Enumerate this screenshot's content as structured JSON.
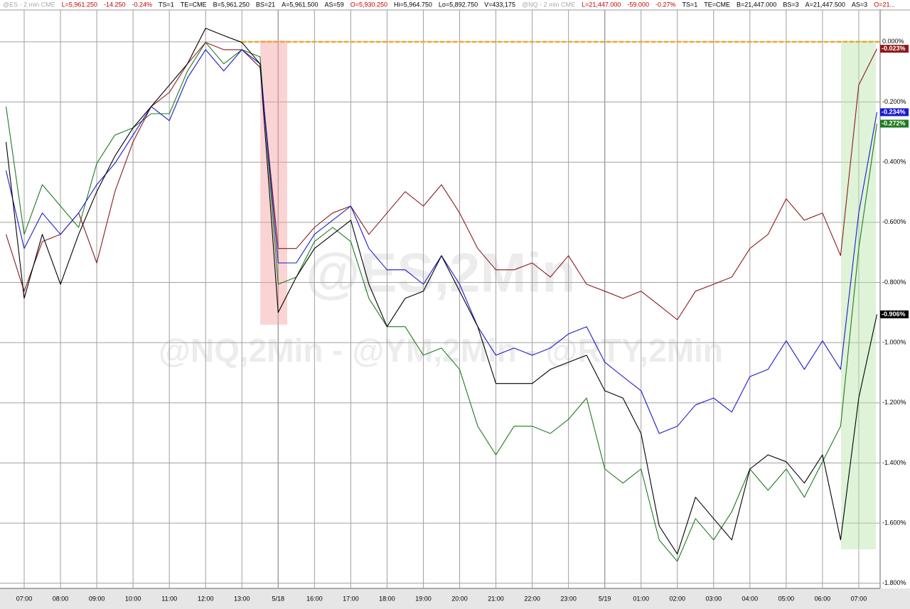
{
  "chart_data": {
    "type": "line",
    "header": [
      {
        "text": "@ES - 2 min  CME",
        "color": "#aaaaaa"
      },
      {
        "text": "L=5,961.250",
        "color": "#c00000"
      },
      {
        "text": "-14.250",
        "color": "#c00000"
      },
      {
        "text": "-0.24%",
        "color": "#c00000"
      },
      {
        "text": "TS=1",
        "color": "#000000"
      },
      {
        "text": "TE=CME",
        "color": "#000000"
      },
      {
        "text": "B=5,961.250",
        "color": "#000000"
      },
      {
        "text": "BS=21",
        "color": "#000000"
      },
      {
        "text": "A=5,961.500",
        "color": "#000000"
      },
      {
        "text": "AS=59",
        "color": "#000000"
      },
      {
        "text": "O=5,930.250",
        "color": "#c00000"
      },
      {
        "text": "Hi=5,964.750",
        "color": "#000000"
      },
      {
        "text": "Lo=5,892.750",
        "color": "#000000"
      },
      {
        "text": "V=433,175",
        "color": "#000000"
      },
      {
        "text": "@NQ - 2 min  CME",
        "color": "#aaaaaa"
      },
      {
        "text": "L=21,447.000",
        "color": "#c00000"
      },
      {
        "text": "-59.000",
        "color": "#c00000"
      },
      {
        "text": "-0.27%",
        "color": "#c00000"
      },
      {
        "text": "TS=1",
        "color": "#000000"
      },
      {
        "text": "TE=CME",
        "color": "#000000"
      },
      {
        "text": "B=21,447.000",
        "color": "#000000"
      },
      {
        "text": "BS=3",
        "color": "#000000"
      },
      {
        "text": "A=21,447.500",
        "color": "#000000"
      },
      {
        "text": "AS=3",
        "color": "#000000"
      },
      {
        "text": "O=21...",
        "color": "#c00000"
      }
    ],
    "watermarks": [
      "@ES,2Min",
      "@NQ,2Min - @YM,2Min - @RTY,2Min"
    ],
    "categories": [
      null,
      "07:00",
      null,
      "08:00",
      null,
      "09:00",
      null,
      "10:00",
      null,
      "11:00",
      null,
      "12:00",
      null,
      "13:00",
      null,
      "5/18",
      null,
      "16:00",
      null,
      "17:00",
      null,
      "18:00",
      null,
      "19:00",
      null,
      "20:00",
      null,
      "21:00",
      null,
      "22:00",
      null,
      "23:00",
      null,
      "5/19",
      null,
      "01:00",
      null,
      "02:00",
      null,
      "03:00",
      null,
      "04:00",
      null,
      "05:00",
      null,
      "06:00",
      null,
      "07:00",
      null
    ],
    "series": [
      {
        "name": "@ES,2Min",
        "color": "#8b1a1a",
        "last_label": "-0.023%",
        "values": [
          -0.64,
          -0.829,
          -0.664,
          -0.64,
          -0.569,
          -0.735,
          -0.498,
          -0.333,
          -0.215,
          -0.168,
          -0.073,
          -0.002,
          -0.026,
          -0.026,
          -0.085,
          -0.687,
          -0.687,
          -0.617,
          -0.569,
          -0.546,
          -0.64,
          -0.569,
          -0.498,
          -0.546,
          -0.475,
          -0.569,
          -0.687,
          -0.758,
          -0.758,
          -0.735,
          -0.782,
          -0.711,
          -0.806,
          -0.829,
          -0.853,
          -0.829,
          -0.876,
          -0.924,
          -0.829,
          -0.806,
          -0.782,
          -0.687,
          -0.64,
          -0.522,
          -0.593,
          -0.569,
          -0.711,
          -0.144,
          -0.023
        ]
      },
      {
        "name": "@NQ,2Min",
        "color": "#1a1acd",
        "last_label": "-0.234%",
        "values": [
          -0.428,
          -0.687,
          -0.569,
          -0.64,
          -0.569,
          -0.475,
          -0.404,
          -0.31,
          -0.215,
          -0.262,
          -0.12,
          -0.026,
          -0.097,
          -0.026,
          -0.073,
          -0.735,
          -0.735,
          -0.64,
          -0.593,
          -0.546,
          -0.687,
          -0.758,
          -0.758,
          -0.806,
          -0.711,
          -0.806,
          -0.947,
          -1.042,
          -1.018,
          -1.042,
          -1.018,
          -0.971,
          -0.947,
          -1.065,
          -1.113,
          -1.16,
          -1.302,
          -1.278,
          -1.207,
          -1.184,
          -1.231,
          -1.113,
          -1.089,
          -0.994,
          -1.089,
          -0.994,
          -1.089,
          -0.569,
          -0.234
        ]
      },
      {
        "name": "@RTY,2Min",
        "color": "#1f7a1f",
        "last_label": "-0.272%",
        "values": [
          -0.215,
          -0.64,
          -0.475,
          -0.546,
          -0.617,
          -0.404,
          -0.31,
          -0.286,
          -0.239,
          -0.239,
          -0.097,
          -0.002,
          -0.073,
          -0.026,
          -0.05,
          -0.806,
          -0.782,
          -0.664,
          -0.617,
          -0.664,
          -0.853,
          -0.947,
          -0.947,
          -1.042,
          -1.018,
          -1.089,
          -1.278,
          -1.373,
          -1.278,
          -1.278,
          -1.302,
          -1.255,
          -1.184,
          -1.42,
          -1.467,
          -1.42,
          -1.656,
          -1.727,
          -1.585,
          -1.656,
          -1.562,
          -1.42,
          -1.491,
          -1.42,
          -1.514,
          -1.396,
          -1.278,
          -0.687,
          -0.272
        ]
      },
      {
        "name": "@YM,2Min",
        "color": "#000000",
        "last_label": "-0.906%",
        "values": [
          -0.333,
          -0.853,
          -0.64,
          -0.806,
          -0.64,
          -0.498,
          -0.38,
          -0.286,
          -0.215,
          -0.144,
          -0.073,
          0.045,
          0.021,
          -0.002,
          -0.073,
          -0.9,
          -0.782,
          -0.687,
          -0.64,
          -0.593,
          -0.806,
          -0.947,
          -0.853,
          -0.829,
          -0.711,
          -0.829,
          -0.947,
          -1.136,
          -1.136,
          -1.136,
          -1.089,
          -1.065,
          -1.042,
          -1.16,
          -1.184,
          -1.302,
          -1.609,
          -1.703,
          -1.514,
          -1.585,
          -1.656,
          -1.42,
          -1.373,
          -1.396,
          -1.467,
          -1.373,
          -1.656,
          -1.184,
          -0.906
        ]
      }
    ],
    "ylim": [
      -1.817,
      0.106
    ],
    "yticks": [
      {
        "value": 0,
        "label": "0.000%"
      },
      {
        "value": -0.2,
        "label": "-0.200%"
      },
      {
        "value": -0.4,
        "label": "-0.400%"
      },
      {
        "value": -0.6,
        "label": "-0.600%"
      },
      {
        "value": -0.8,
        "label": "-0.800%"
      },
      {
        "value": -1.0,
        "label": "-1.000%"
      },
      {
        "value": -1.2,
        "label": "-1.200%"
      },
      {
        "value": -1.4,
        "label": "-1.400%"
      },
      {
        "value": -1.6,
        "label": "-1.600%"
      },
      {
        "value": -1.8,
        "label": "-1.800%"
      }
    ],
    "reference_line": {
      "value": 0,
      "color": "#f5a623"
    },
    "grid": true
  }
}
